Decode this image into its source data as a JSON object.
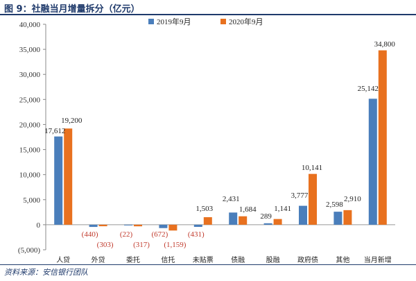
{
  "header": {
    "title": "图 9：社融当月增量拆分（亿元）"
  },
  "footer": {
    "source": "资料来源：安信银行团队"
  },
  "colors": {
    "series_2019": "#4a7ebb",
    "series_2020": "#e8711f",
    "negative_label": "#c0392b",
    "heading": "#1f3a6b"
  },
  "chart_data": {
    "type": "bar",
    "title": "",
    "xlabel": "",
    "ylabel": "",
    "ylim": [
      -5000,
      40000
    ],
    "yticks": [
      40000,
      35000,
      30000,
      25000,
      20000,
      15000,
      10000,
      5000,
      0,
      -5000
    ],
    "ytick_labels": [
      "40,000",
      "35,000",
      "30,000",
      "25,000",
      "20,000",
      "15,000",
      "10,000",
      "5,000",
      "0",
      "(5,000)"
    ],
    "grid": false,
    "legend_position": "top",
    "categories": [
      "人贷",
      "外贷",
      "委托",
      "信托",
      "未贴票",
      "债融",
      "股融",
      "政府债",
      "其他",
      "当月新增"
    ],
    "series": [
      {
        "name": "2019年9月",
        "values": [
          17612,
          -440,
          -22,
          -672,
          -431,
          2431,
          289,
          3777,
          2598,
          25142
        ],
        "labels": [
          "17,612",
          "(440)",
          "(22)",
          "(672)",
          "(431)",
          "2,431",
          "289",
          "3,777",
          "2,598",
          "25,142"
        ]
      },
      {
        "name": "2020年9月",
        "values": [
          19200,
          -303,
          -317,
          -1159,
          1503,
          1684,
          1141,
          10141,
          2910,
          34800
        ],
        "labels": [
          "19,200",
          "(303)",
          "(317)",
          "(1,159)",
          "1,503",
          "1,684",
          "1,141",
          "10,141",
          "2,910",
          "34,800"
        ]
      }
    ]
  }
}
